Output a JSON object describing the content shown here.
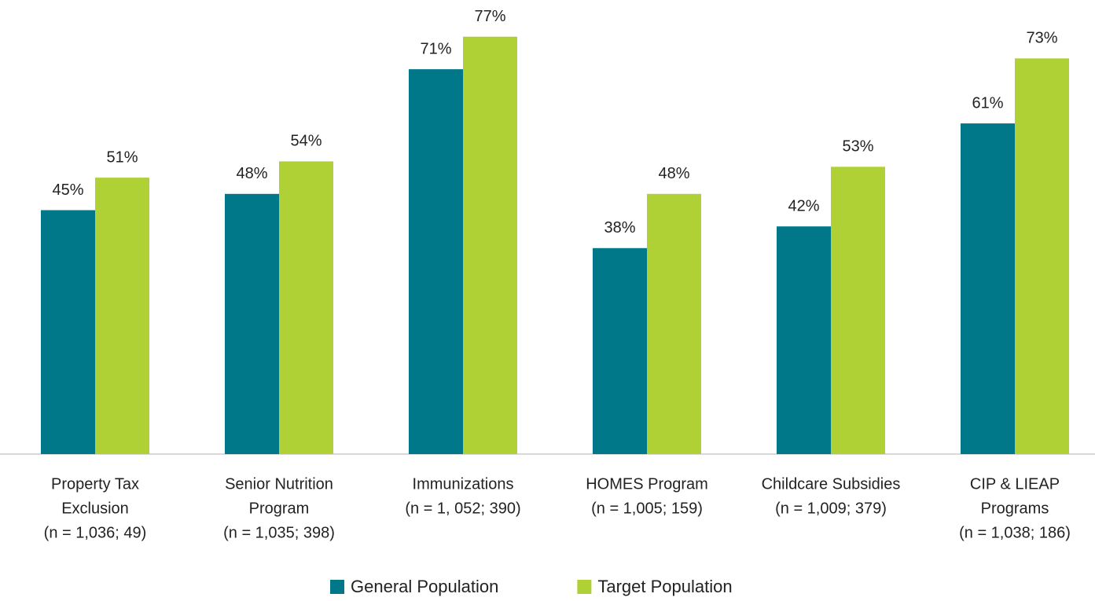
{
  "chart_data": {
    "type": "bar",
    "categories": [
      [
        "Property Tax",
        "Exclusion",
        "(n = 1,036; 49)"
      ],
      [
        "Senior Nutrition",
        "Program",
        "(n = 1,035; 398)"
      ],
      [
        "Immunizations",
        "(n = 1, 052; 390)"
      ],
      [
        "HOMES Program",
        "(n = 1,005; 159)"
      ],
      [
        "Childcare Subsidies",
        "(n = 1,009; 379)"
      ],
      [
        "CIP & LIEAP",
        "Programs",
        "(n = 1,038; 186)"
      ]
    ],
    "series": [
      {
        "name": "General Population",
        "color": "#00788a",
        "values": [
          45,
          48,
          71,
          38,
          42,
          61
        ],
        "value_labels": [
          "45%",
          "48%",
          "71%",
          "38%",
          "42%",
          "61%"
        ]
      },
      {
        "name": "Target Population",
        "color": "#b0d136",
        "values": [
          51,
          54,
          77,
          48,
          53,
          73
        ],
        "value_labels": [
          "51%",
          "54%",
          "77%",
          "48%",
          "53%",
          "73%"
        ]
      }
    ],
    "ylim": [
      0,
      80
    ],
    "legend": "bottom"
  }
}
